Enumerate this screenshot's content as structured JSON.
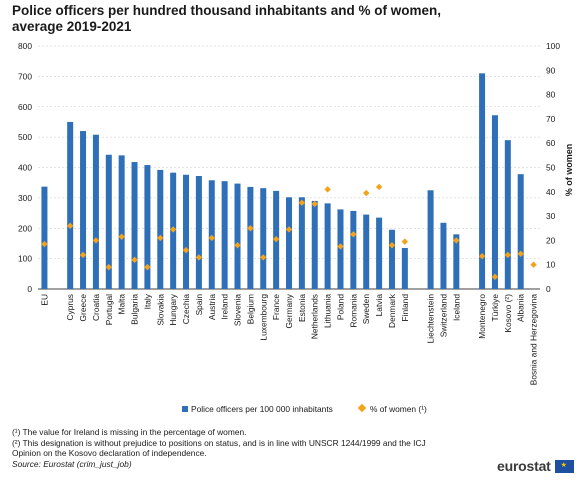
{
  "header": {
    "title_line1": "Police officers per hundred thousand inhabitants and % of women,",
    "title_line2": "average 2019-2021"
  },
  "chart_data": {
    "type": "bar",
    "categories": [
      "EU",
      "Cyprus",
      "Greece",
      "Croatia",
      "Portugal",
      "Malta",
      "Bulgaria",
      "Italy",
      "Slovakia",
      "Hungary",
      "Czechia",
      "Spain",
      "Austria",
      "Ireland",
      "Slovenia",
      "Belgium",
      "Luxembourg",
      "France",
      "Germany",
      "Estonia",
      "Netherlands",
      "Lithuania",
      "Poland",
      "Romania",
      "Sweden",
      "Latvia",
      "Denmark",
      "Finland",
      "Liechtenstein",
      "Switzerland",
      "Iceland",
      "Montenegro",
      "Türkiye",
      "Kosovo (²)",
      "Albania",
      "Bosnia and Herzegovina"
    ],
    "gap_before": [
      1,
      28,
      31
    ],
    "series": [
      {
        "name": "Police officers per 100 000 inhabitants",
        "axis": "left",
        "chart": "bar",
        "color": "#2e6fb7",
        "values": [
          337,
          550,
          520,
          508,
          442,
          440,
          418,
          408,
          392,
          383,
          376,
          372,
          358,
          355,
          347,
          336,
          332,
          323,
          302,
          302,
          290,
          282,
          262,
          257,
          245,
          235,
          195,
          135,
          325,
          218,
          180,
          710,
          572,
          490,
          378,
          null
        ]
      },
      {
        "name": "% of women (¹)",
        "axis": "right",
        "chart": "scatter",
        "color": "#f2a31b",
        "values": [
          18.5,
          26,
          14,
          20,
          9,
          21.5,
          12,
          9,
          21,
          24.5,
          16,
          13,
          21,
          null,
          18,
          25,
          13,
          20.5,
          24.5,
          35.5,
          35,
          41,
          17.5,
          22.5,
          39.5,
          42,
          18,
          19.5,
          null,
          null,
          20,
          13.5,
          5,
          14,
          14.5,
          10
        ]
      }
    ],
    "ylim": [
      0,
      800
    ],
    "y_ticks": [
      0,
      100,
      200,
      300,
      400,
      500,
      600,
      700,
      800
    ],
    "y2lim": [
      0,
      100
    ],
    "y2_ticks": [
      0,
      10,
      20,
      30,
      40,
      50,
      60,
      70,
      80,
      90,
      100
    ],
    "y2label": "% of women",
    "grid": "horizontal-dashed",
    "legend": "bottom-center"
  },
  "footnotes": {
    "note1": "(¹) The value for Ireland is missing in the percentage of women.",
    "note2a": "(²) This designation is without prejudice to positions on status, and is in line with UNSCR 1244/1999 and the ICJ",
    "note2b": "Opinion on the Kosovo declaration of independence.",
    "source": "Source: Eurostat (crim_just_job)"
  },
  "brand": {
    "name": "eurostat",
    "flag_icon": "eu-flag-icon"
  }
}
